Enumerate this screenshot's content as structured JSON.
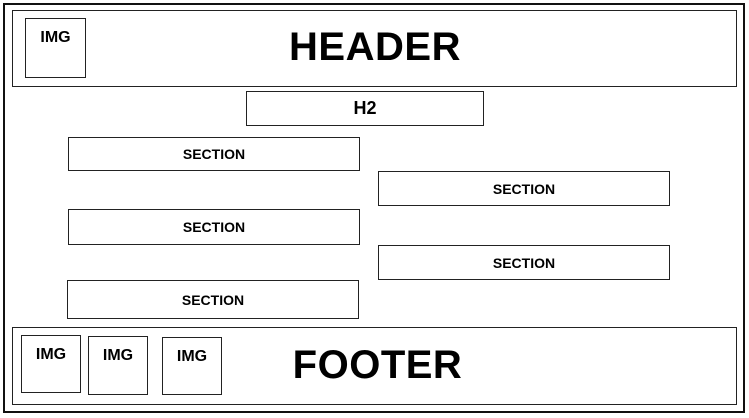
{
  "header": {
    "img_label": "IMG",
    "title": "HEADER"
  },
  "h2": {
    "label": "H2"
  },
  "sections": [
    {
      "label": "SECTION"
    },
    {
      "label": "SECTION"
    },
    {
      "label": "SECTION"
    },
    {
      "label": "SECTION"
    },
    {
      "label": "SECTION"
    }
  ],
  "footer": {
    "img_labels": [
      "IMG",
      "IMG",
      "IMG"
    ],
    "title": "FOOTER"
  }
}
